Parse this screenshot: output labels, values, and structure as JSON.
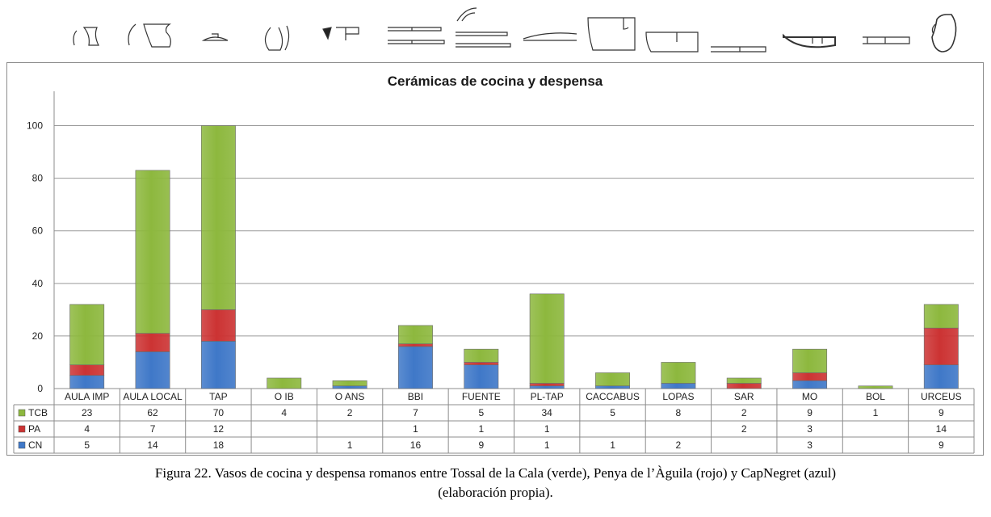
{
  "chart_data": {
    "type": "bar",
    "stacked": true,
    "title": "Cerámicas de cocina y despensa",
    "categories": [
      "AULA IMP",
      "AULA LOCAL",
      "TAP",
      "O IB",
      "O ANS",
      "BBI",
      "FUENTE",
      "PL-TAP",
      "CACCABUS",
      "LOPAS",
      "SAR",
      "MO",
      "BOL",
      "URCEUS"
    ],
    "series": [
      {
        "name": "CN",
        "color": "#3f78c8",
        "values": [
          5,
          14,
          18,
          null,
          1,
          16,
          9,
          1,
          1,
          2,
          null,
          3,
          null,
          9
        ]
      },
      {
        "name": "PA",
        "color": "#cc3333",
        "values": [
          4,
          7,
          12,
          null,
          null,
          1,
          1,
          1,
          null,
          null,
          2,
          3,
          null,
          14
        ]
      },
      {
        "name": "TCB",
        "color": "#8db83e",
        "values": [
          23,
          62,
          70,
          4,
          2,
          7,
          5,
          34,
          5,
          8,
          2,
          9,
          1,
          9
        ]
      }
    ],
    "table_row_order": [
      "TCB",
      "PA",
      "CN"
    ],
    "ylim": [
      0,
      110
    ],
    "yticks": [
      0,
      20,
      40,
      60,
      80,
      100
    ],
    "grid": true,
    "legend": "data-table"
  },
  "caption": {
    "line1": "Figura 22. Vasos de cocina y despensa romanos entre Tossal de la Cala (verde), Penya de l’Àguila (rojo) y CapNegret (azul)",
    "line2": "(elaboración propia)."
  },
  "icons": [
    "aula-imp-vessel-icon",
    "aula-local-vessel-icon",
    "tap-lid-icon",
    "olla-iberica-vessel-icon",
    "olla-ansada-vessel-icon",
    "bbi-plate-icon",
    "fuente-dish-icon",
    "pl-tap-lid-icon",
    "caccabus-pot-icon",
    "lopas-pot-icon",
    "sartago-pan-icon",
    "mortarium-bowl-icon",
    "bol-bowl-icon",
    "urceus-jug-icon"
  ]
}
